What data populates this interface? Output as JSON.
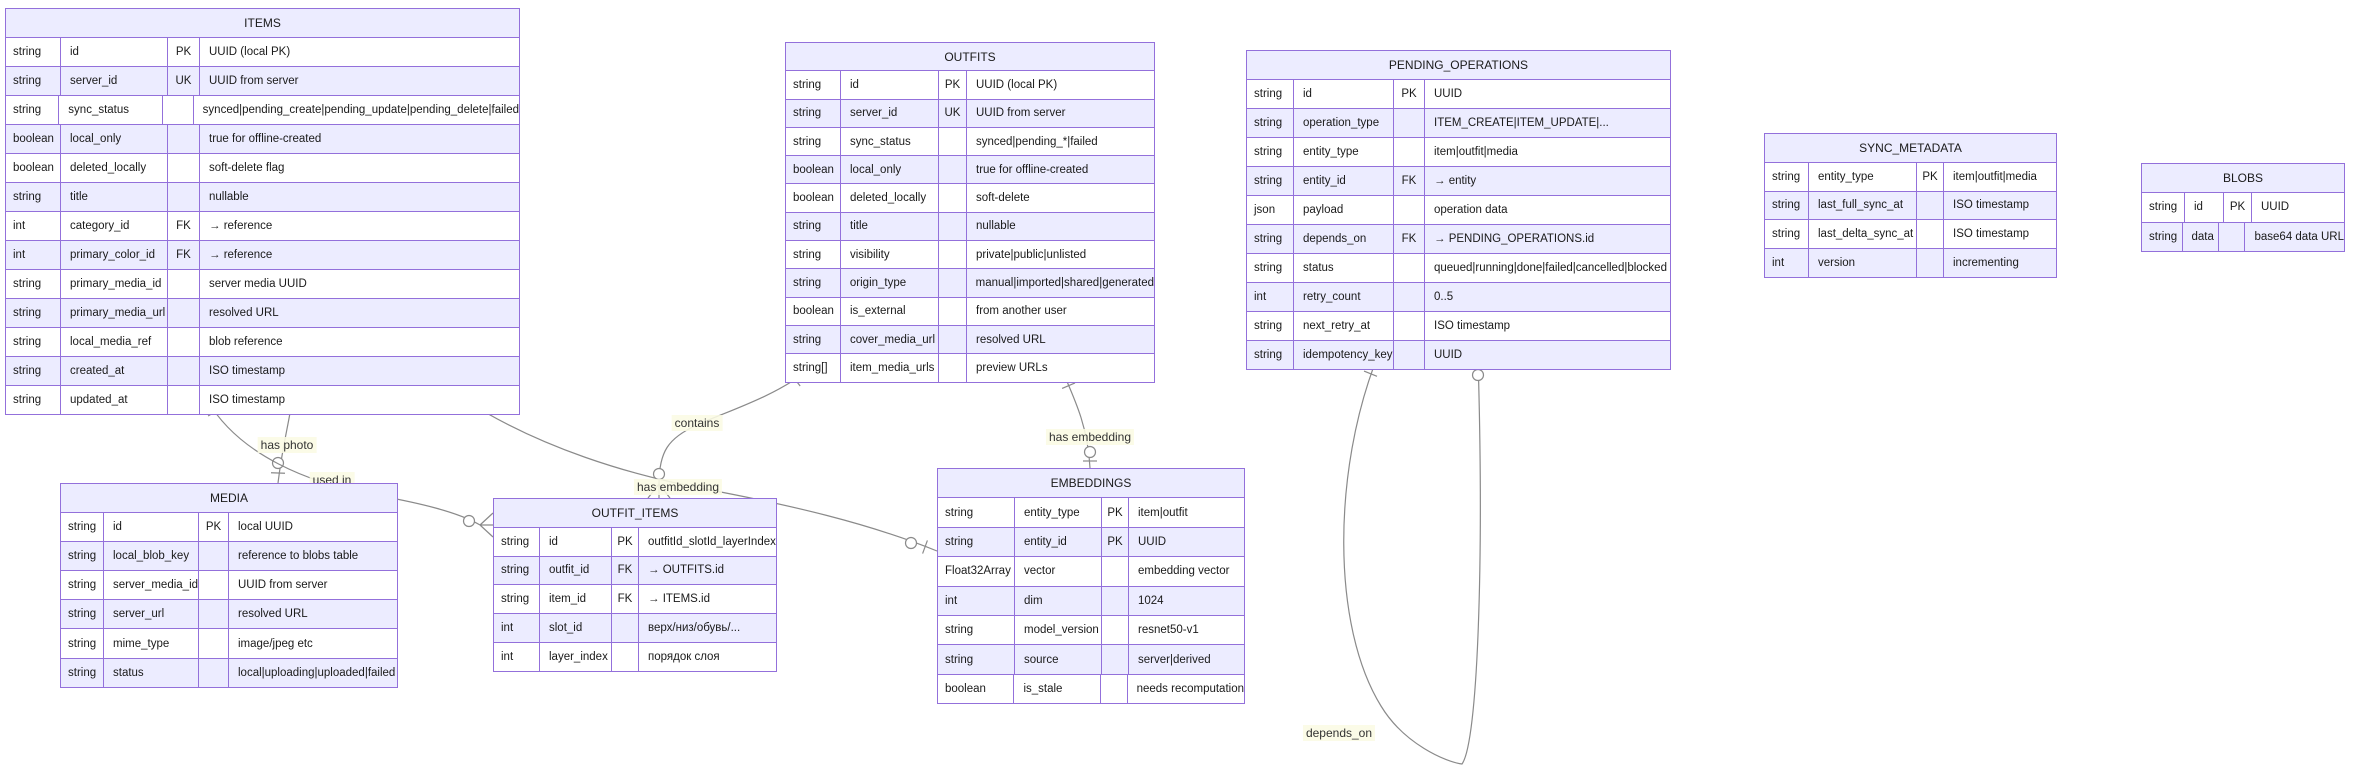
{
  "diagram": {
    "type": "entity-relationship",
    "colors": {
      "entity_border": "#9370DB",
      "header_fill": "#ECECFF",
      "row_even_fill": "#ECECFF",
      "row_odd_fill": "#ffffff",
      "relationship_line": "#8a8a8a",
      "text": "#1a1a1a"
    },
    "entities": [
      {
        "name": "ITEMS",
        "rows": [
          {
            "type": "string",
            "name": "id",
            "key": "PK",
            "comment": "UUID (local PK)"
          },
          {
            "type": "string",
            "name": "server_id",
            "key": "UK",
            "comment": "UUID from server"
          },
          {
            "type": "string",
            "name": "sync_status",
            "key": "",
            "comment": "synced|pending_create|pending_update|pending_delete|failed"
          },
          {
            "type": "boolean",
            "name": "local_only",
            "key": "",
            "comment": "true for offline-created"
          },
          {
            "type": "boolean",
            "name": "deleted_locally",
            "key": "",
            "comment": "soft-delete flag"
          },
          {
            "type": "string",
            "name": "title",
            "key": "",
            "comment": "nullable"
          },
          {
            "type": "int",
            "name": "category_id",
            "key": "FK",
            "comment": "→ reference"
          },
          {
            "type": "int",
            "name": "primary_color_id",
            "key": "FK",
            "comment": "→ reference"
          },
          {
            "type": "string",
            "name": "primary_media_id",
            "key": "",
            "comment": "server media UUID"
          },
          {
            "type": "string",
            "name": "primary_media_url",
            "key": "",
            "comment": "resolved URL"
          },
          {
            "type": "string",
            "name": "local_media_ref",
            "key": "",
            "comment": "blob reference"
          },
          {
            "type": "string",
            "name": "created_at",
            "key": "",
            "comment": "ISO timestamp"
          },
          {
            "type": "string",
            "name": "updated_at",
            "key": "",
            "comment": "ISO timestamp"
          }
        ]
      },
      {
        "name": "OUTFITS",
        "rows": [
          {
            "type": "string",
            "name": "id",
            "key": "PK",
            "comment": "UUID (local PK)"
          },
          {
            "type": "string",
            "name": "server_id",
            "key": "UK",
            "comment": "UUID from server"
          },
          {
            "type": "string",
            "name": "sync_status",
            "key": "",
            "comment": "synced|pending_*|failed"
          },
          {
            "type": "boolean",
            "name": "local_only",
            "key": "",
            "comment": "true for offline-created"
          },
          {
            "type": "boolean",
            "name": "deleted_locally",
            "key": "",
            "comment": "soft-delete"
          },
          {
            "type": "string",
            "name": "title",
            "key": "",
            "comment": "nullable"
          },
          {
            "type": "string",
            "name": "visibility",
            "key": "",
            "comment": "private|public|unlisted"
          },
          {
            "type": "string",
            "name": "origin_type",
            "key": "",
            "comment": "manual|imported|shared|generated"
          },
          {
            "type": "boolean",
            "name": "is_external",
            "key": "",
            "comment": "from another user"
          },
          {
            "type": "string",
            "name": "cover_media_url",
            "key": "",
            "comment": "resolved URL"
          },
          {
            "type": "string[]",
            "name": "item_media_urls",
            "key": "",
            "comment": "preview URLs"
          }
        ]
      },
      {
        "name": "PENDING_OPERATIONS",
        "rows": [
          {
            "type": "string",
            "name": "id",
            "key": "PK",
            "comment": "UUID"
          },
          {
            "type": "string",
            "name": "operation_type",
            "key": "",
            "comment": "ITEM_CREATE|ITEM_UPDATE|..."
          },
          {
            "type": "string",
            "name": "entity_type",
            "key": "",
            "comment": "item|outfit|media"
          },
          {
            "type": "string",
            "name": "entity_id",
            "key": "FK",
            "comment": "→ entity"
          },
          {
            "type": "json",
            "name": "payload",
            "key": "",
            "comment": "operation data"
          },
          {
            "type": "string",
            "name": "depends_on",
            "key": "FK",
            "comment": "→ PENDING_OPERATIONS.id"
          },
          {
            "type": "string",
            "name": "status",
            "key": "",
            "comment": "queued|running|done|failed|cancelled|blocked"
          },
          {
            "type": "int",
            "name": "retry_count",
            "key": "",
            "comment": "0..5"
          },
          {
            "type": "string",
            "name": "next_retry_at",
            "key": "",
            "comment": "ISO timestamp"
          },
          {
            "type": "string",
            "name": "idempotency_key",
            "key": "",
            "comment": "UUID"
          }
        ]
      },
      {
        "name": "SYNC_METADATA",
        "rows": [
          {
            "type": "string",
            "name": "entity_type",
            "key": "PK",
            "comment": "item|outfit|media"
          },
          {
            "type": "string",
            "name": "last_full_sync_at",
            "key": "",
            "comment": "ISO timestamp"
          },
          {
            "type": "string",
            "name": "last_delta_sync_at",
            "key": "",
            "comment": "ISO timestamp"
          },
          {
            "type": "int",
            "name": "version",
            "key": "",
            "comment": "incrementing"
          }
        ]
      },
      {
        "name": "BLOBS",
        "rows": [
          {
            "type": "string",
            "name": "id",
            "key": "PK",
            "comment": "UUID"
          },
          {
            "type": "string",
            "name": "data",
            "key": "",
            "comment": "base64 data URL"
          }
        ]
      },
      {
        "name": "MEDIA",
        "rows": [
          {
            "type": "string",
            "name": "id",
            "key": "PK",
            "comment": "local UUID"
          },
          {
            "type": "string",
            "name": "local_blob_key",
            "key": "",
            "comment": "reference to blobs table"
          },
          {
            "type": "string",
            "name": "server_media_id",
            "key": "",
            "comment": "UUID from server"
          },
          {
            "type": "string",
            "name": "server_url",
            "key": "",
            "comment": "resolved URL"
          },
          {
            "type": "string",
            "name": "mime_type",
            "key": "",
            "comment": "image/jpeg etc"
          },
          {
            "type": "string",
            "name": "status",
            "key": "",
            "comment": "local|uploading|uploaded|failed"
          }
        ]
      },
      {
        "name": "OUTFIT_ITEMS",
        "rows": [
          {
            "type": "string",
            "name": "id",
            "key": "PK",
            "comment": "outfitId_slotId_layerIndex"
          },
          {
            "type": "string",
            "name": "outfit_id",
            "key": "FK",
            "comment": "→ OUTFITS.id"
          },
          {
            "type": "string",
            "name": "item_id",
            "key": "FK",
            "comment": "→ ITEMS.id"
          },
          {
            "type": "int",
            "name": "slot_id",
            "key": "",
            "comment": "верх/низ/обувь/..."
          },
          {
            "type": "int",
            "name": "layer_index",
            "key": "",
            "comment": "порядок слоя"
          }
        ]
      },
      {
        "name": "EMBEDDINGS",
        "rows": [
          {
            "type": "string",
            "name": "entity_type",
            "key": "PK",
            "comment": "item|outfit"
          },
          {
            "type": "string",
            "name": "entity_id",
            "key": "PK",
            "comment": "UUID"
          },
          {
            "type": "Float32Array",
            "name": "vector",
            "key": "",
            "comment": "embedding vector"
          },
          {
            "type": "int",
            "name": "dim",
            "key": "",
            "comment": "1024"
          },
          {
            "type": "string",
            "name": "model_version",
            "key": "",
            "comment": "resnet50-v1"
          },
          {
            "type": "string",
            "name": "source",
            "key": "",
            "comment": "server|derived"
          },
          {
            "type": "boolean",
            "name": "is_stale",
            "key": "",
            "comment": "needs recomputation"
          }
        ]
      }
    ],
    "relationships": [
      {
        "from": "ITEMS",
        "to": "MEDIA",
        "label": "has photo",
        "from_card": "exactly-one",
        "to_card": "zero-or-one"
      },
      {
        "from": "ITEMS",
        "to": "OUTFIT_ITEMS",
        "label": "used in",
        "from_card": "exactly-one",
        "to_card": "zero-or-many"
      },
      {
        "from": "ITEMS",
        "to": "EMBEDDINGS",
        "label": "has embedding",
        "from_card": "exactly-one",
        "to_card": "zero-or-one"
      },
      {
        "from": "OUTFITS",
        "to": "OUTFIT_ITEMS",
        "label": "contains",
        "from_card": "exactly-one",
        "to_card": "zero-or-many"
      },
      {
        "from": "OUTFITS",
        "to": "EMBEDDINGS",
        "label": "has embedding",
        "from_card": "exactly-one",
        "to_card": "zero-or-one"
      },
      {
        "from": "PENDING_OPERATIONS",
        "to": "PENDING_OPERATIONS",
        "label": "depends_on",
        "from_card": "exactly-one",
        "to_card": "zero-or-one"
      }
    ]
  }
}
